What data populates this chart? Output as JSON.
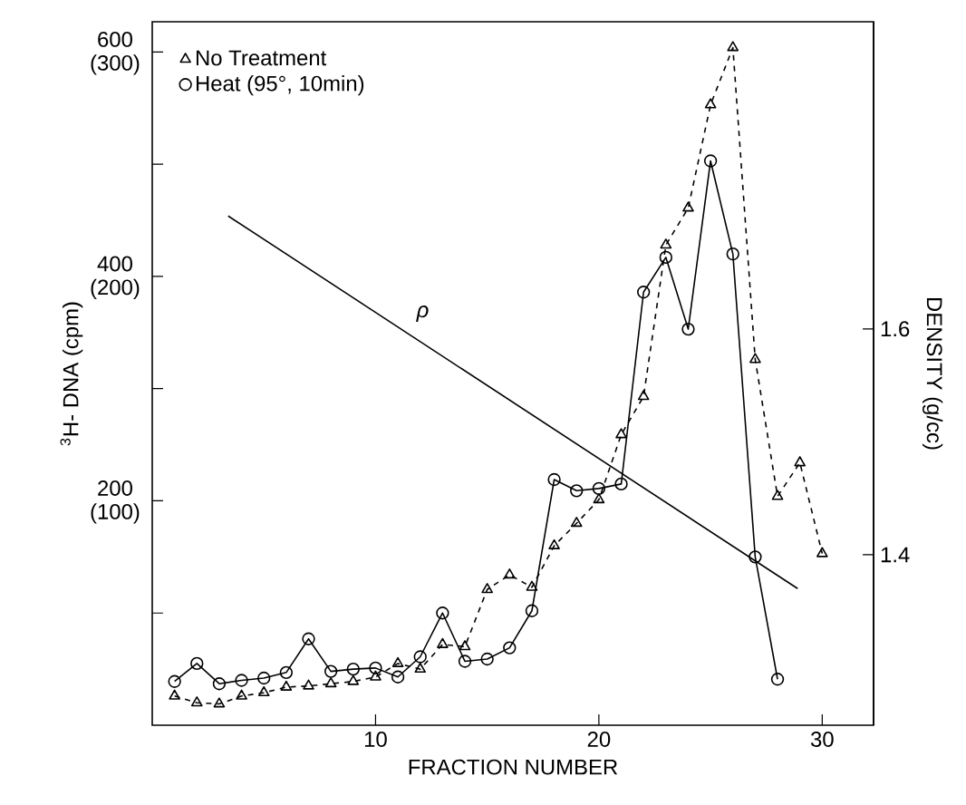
{
  "chart_data": {
    "type": "line",
    "xlabel": "FRACTION NUMBER",
    "ylabel": "$^{3}$H- DNA (cpm)",
    "y2label": "DENSITY (g/cc)",
    "xlim": [
      0,
      32.3
    ],
    "xticks": [
      10,
      20,
      30
    ],
    "ylim": [
      0,
      627
    ],
    "yticks": [
      {
        "value": 100,
        "label": null
      },
      200,
      {
        "value": 300,
        "label": null
      },
      400,
      {
        "value": 500,
        "label": null
      },
      600
    ],
    "y3lim": [
      0,
      313.5
    ],
    "y3ticks": [
      {
        "value": 100,
        "label": "(100)"
      },
      {
        "value": 200,
        "label": "(200)"
      },
      {
        "value": 300,
        "label": "(300)"
      }
    ],
    "y2lim": [
      1.249,
      1.872
    ],
    "y2ticks": [
      1.4,
      1.6
    ],
    "grid": false,
    "legend": "top left",
    "series": [
      {
        "name": "No Treatment",
        "color": "#000000",
        "marker": "triangle",
        "line_style": "dashed",
        "x": [
          1,
          2,
          3,
          4,
          5,
          6,
          7,
          8,
          9,
          10,
          11,
          12,
          13,
          14,
          15,
          16,
          17,
          18,
          19,
          20,
          21,
          22,
          23,
          24,
          25,
          26,
          27,
          28,
          29,
          30
        ],
        "values": [
          26,
          20,
          19,
          26,
          29,
          34,
          35,
          37,
          39,
          43,
          55,
          50,
          72,
          70,
          121,
          134,
          123,
          160,
          180,
          201,
          259,
          293,
          428,
          461,
          553,
          604,
          326,
          204,
          234,
          153
        ]
      },
      {
        "name": "Heat (95°, 10min)",
        "color": "#000000",
        "marker": "circle",
        "line_style": "solid",
        "x": [
          1,
          2,
          3,
          4,
          5,
          6,
          7,
          8,
          9,
          10,
          11,
          12,
          13,
          14,
          15,
          16,
          17,
          18,
          19,
          20,
          21,
          22,
          23,
          24,
          25,
          26,
          27,
          28
        ],
        "values": [
          39,
          55,
          37,
          40,
          42,
          47,
          77,
          48,
          50,
          51,
          43,
          61,
          100,
          57,
          59,
          69,
          102,
          219,
          209,
          211,
          215,
          386,
          417,
          353,
          503,
          420,
          150,
          41
        ]
      },
      {
        "color": "#000000",
        "marker": "none",
        "line_style": "solid",
        "axis": "y2",
        "x": [
          3.4,
          28.9
        ],
        "values": [
          1.7,
          1.37
        ]
      }
    ],
    "annotations": [
      "ρ"
    ]
  }
}
